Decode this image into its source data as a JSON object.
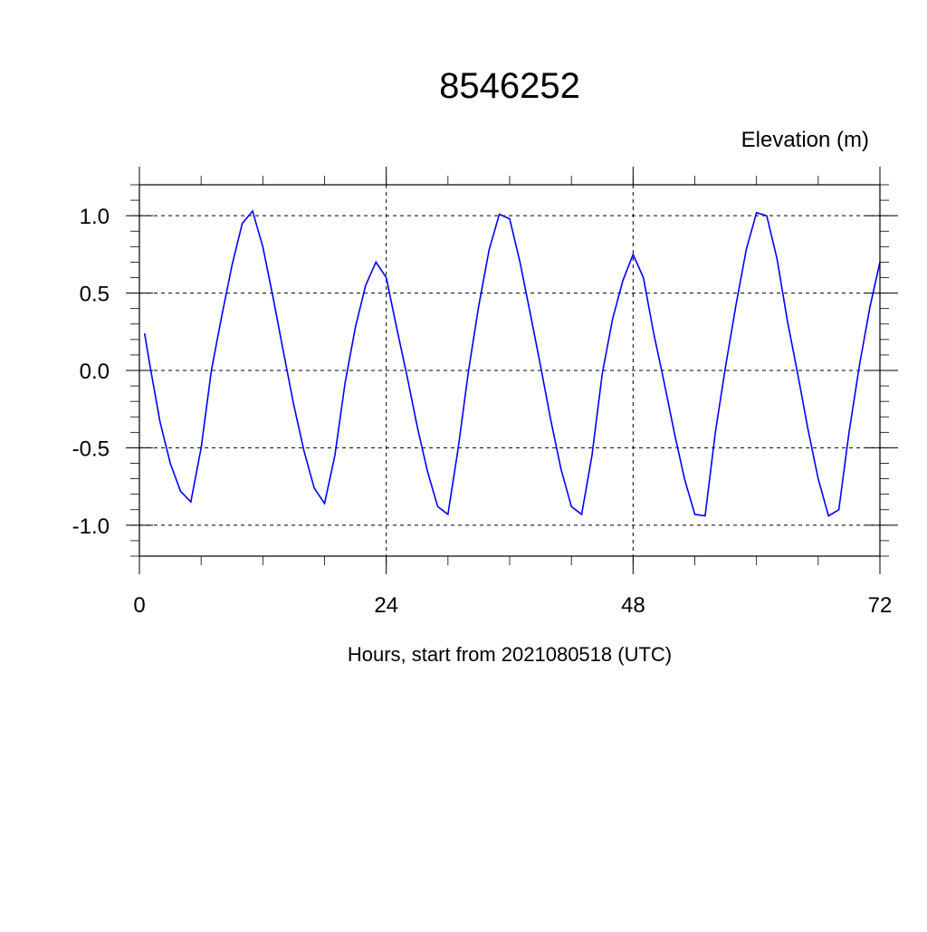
{
  "chart_data": {
    "type": "line",
    "title": "8546252",
    "ylabel": "Elevation (m)",
    "xlabel": "Hours, start from 2021080518 (UTC)",
    "xlim": [
      0,
      72
    ],
    "ylim": [
      -1.2,
      1.2
    ],
    "x_ticks": [
      0,
      24,
      48,
      72
    ],
    "x_tick_labels": [
      "0",
      "24",
      "48",
      "72"
    ],
    "x_minor_step": 6,
    "y_ticks": [
      -1.0,
      -0.5,
      0.0,
      0.5,
      1.0
    ],
    "y_tick_labels": [
      "-1.0",
      "-0.5",
      "0.0",
      "0.5",
      "1.0"
    ],
    "y_minor_step": 0.1,
    "grid": true,
    "grid_style": "dashed",
    "line_color": "#0000ff",
    "series": [
      {
        "x": [
          0.5,
          1,
          2,
          3,
          4,
          5,
          6,
          7,
          8,
          9,
          10,
          11,
          12,
          13,
          14,
          15,
          16,
          17,
          18,
          19,
          20,
          21,
          22,
          23,
          24,
          25,
          26,
          27,
          28,
          29,
          30,
          31,
          32,
          33,
          34,
          35,
          36,
          37,
          38,
          39,
          40,
          41,
          42,
          43,
          44,
          45,
          46,
          47,
          48,
          49,
          50,
          51,
          52,
          53,
          54,
          55,
          56,
          57,
          58,
          59,
          60,
          61,
          62,
          63,
          64,
          65,
          66,
          67,
          68,
          69,
          70,
          71,
          72
        ],
        "y": [
          0.24,
          0.04,
          -0.33,
          -0.6,
          -0.78,
          -0.85,
          -0.5,
          0.0,
          0.35,
          0.68,
          0.95,
          1.03,
          0.8,
          0.47,
          0.12,
          -0.22,
          -0.52,
          -0.76,
          -0.86,
          -0.55,
          -0.08,
          0.28,
          0.55,
          0.7,
          0.6,
          0.28,
          -0.03,
          -0.36,
          -0.65,
          -0.88,
          -0.93,
          -0.5,
          0.0,
          0.42,
          0.78,
          1.01,
          0.98,
          0.7,
          0.37,
          0.03,
          -0.32,
          -0.64,
          -0.88,
          -0.93,
          -0.55,
          -0.02,
          0.33,
          0.58,
          0.75,
          0.6,
          0.24,
          -0.07,
          -0.4,
          -0.7,
          -0.93,
          -0.94,
          -0.4,
          0.03,
          0.42,
          0.78,
          1.02,
          1.0,
          0.72,
          0.32,
          -0.02,
          -0.38,
          -0.7,
          -0.94,
          -0.9,
          -0.4,
          0.03,
          0.4,
          0.7
        ]
      }
    ]
  }
}
